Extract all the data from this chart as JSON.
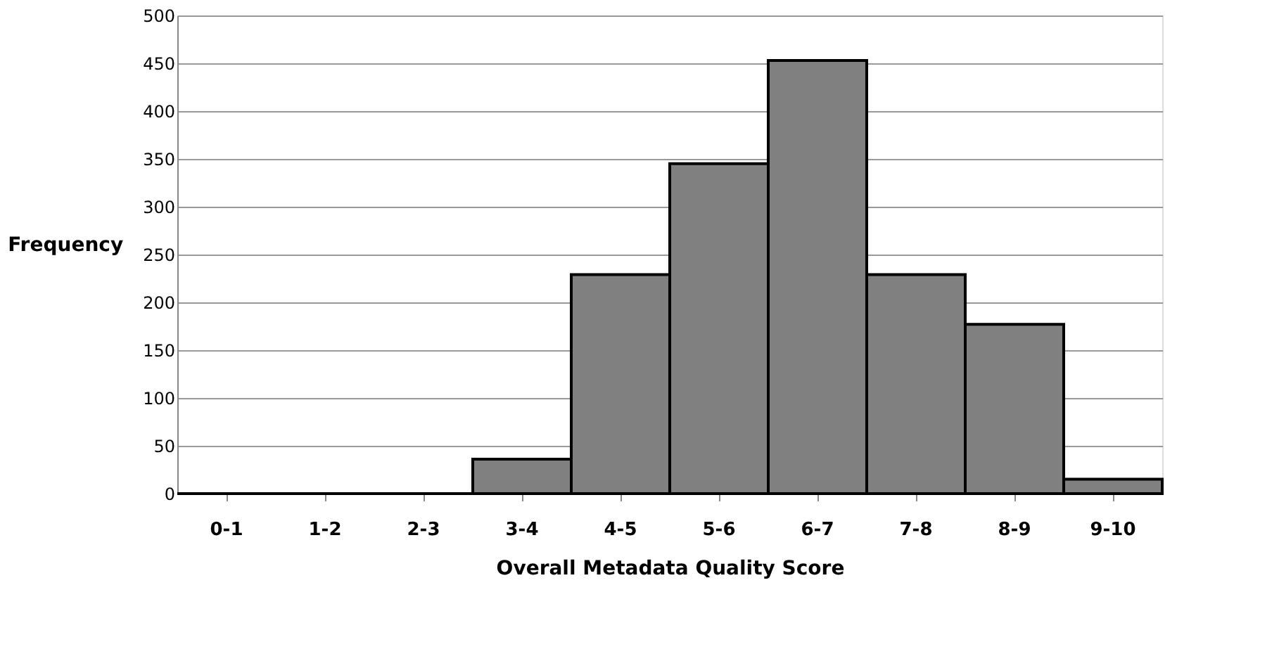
{
  "chart_data": {
    "type": "bar",
    "xlabel": "Overall Metadata Quality Score",
    "ylabel": "Frequency",
    "categories": [
      "0-1",
      "1-2",
      "2-3",
      "3-4",
      "4-5",
      "5-6",
      "6-7",
      "7-8",
      "8-9",
      "9-10"
    ],
    "values": [
      0,
      0,
      0,
      36,
      229,
      345,
      453,
      229,
      177,
      15
    ],
    "color": "#808080",
    "ylim": [
      0,
      500
    ],
    "yticks": [
      0,
      50,
      100,
      150,
      200,
      250,
      300,
      350,
      400,
      450,
      500
    ],
    "grid": "y"
  }
}
